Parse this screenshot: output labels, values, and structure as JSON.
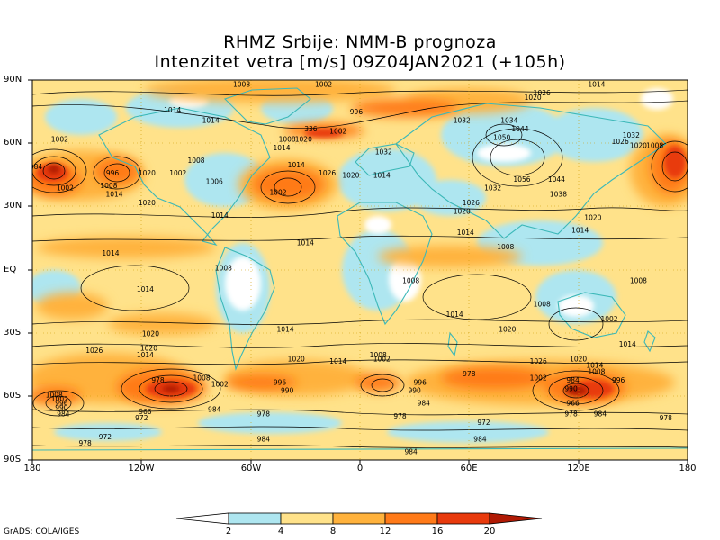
{
  "title_line1": "RHMZ Srbije: NMM-B prognoza",
  "title_line2": "Intenzitet vetra [m/s] 09Z04JAN2021 (+105h)",
  "credit": "GrADS: COLA/IGES",
  "lat_labels": [
    "90N",
    "60N",
    "30N",
    "EQ",
    "30S",
    "60S",
    "90S"
  ],
  "lon_labels": [
    "180",
    "120W",
    "60W",
    "0",
    "60E",
    "120E",
    "180"
  ],
  "colorbar": {
    "ticks": [
      "2",
      "4",
      "8",
      "12",
      "16",
      "20"
    ],
    "colors": [
      "#ffffff",
      "#aee6f0",
      "#ffe28a",
      "#ffb23c",
      "#ff7a18",
      "#e83a0c",
      "#b01a04"
    ]
  },
  "wind_colors": {
    "calm": "#ffffff",
    "light": "#aee6f0",
    "moderate": "#ffe28a",
    "fresh": "#ffb23c",
    "strong": "#ff7a18",
    "very_strong": "#e83a0c",
    "extreme": "#b01a04"
  },
  "coast_color": "#3cb8b8",
  "pressure_labels": [
    {
      "text": "1008",
      "lon": -65,
      "lat": 88
    },
    {
      "text": "1002",
      "lon": -20,
      "lat": 88
    },
    {
      "text": "1014",
      "lon": 130,
      "lat": 88
    },
    {
      "text": "1026",
      "lon": 100,
      "lat": 84
    },
    {
      "text": "1020",
      "lon": 95,
      "lat": 82
    },
    {
      "text": "996",
      "lon": -2,
      "lat": 75
    },
    {
      "text": "1014",
      "lon": -103,
      "lat": 76
    },
    {
      "text": "1014",
      "lon": -82,
      "lat": 71
    },
    {
      "text": "1032",
      "lon": 56,
      "lat": 71
    },
    {
      "text": "1034",
      "lon": 82,
      "lat": 71
    },
    {
      "text": "1044",
      "lon": 88,
      "lat": 67
    },
    {
      "text": "1002",
      "lon": -165,
      "lat": 62
    },
    {
      "text": "336",
      "lon": -27,
      "lat": 67
    },
    {
      "text": "1002",
      "lon": -12,
      "lat": 66
    },
    {
      "text": "1008",
      "lon": -40,
      "lat": 62
    },
    {
      "text": "1014",
      "lon": -43,
      "lat": 58
    },
    {
      "text": "1020",
      "lon": -31,
      "lat": 62
    },
    {
      "text": "1050",
      "lon": 78,
      "lat": 63
    },
    {
      "text": "1032",
      "lon": 149,
      "lat": 64
    },
    {
      "text": "1026",
      "lon": 143,
      "lat": 61
    },
    {
      "text": "1020",
      "lon": 153,
      "lat": 59
    },
    {
      "text": "1008",
      "lon": 162,
      "lat": 59
    },
    {
      "text": "1032",
      "lon": 13,
      "lat": 56
    },
    {
      "text": "984",
      "lon": -178,
      "lat": 49
    },
    {
      "text": "1002",
      "lon": -162,
      "lat": 39
    },
    {
      "text": "996",
      "lon": -136,
      "lat": 46
    },
    {
      "text": "1020",
      "lon": -117,
      "lat": 46
    },
    {
      "text": "1002",
      "lon": -100,
      "lat": 46
    },
    {
      "text": "1008",
      "lon": -90,
      "lat": 52
    },
    {
      "text": "1014",
      "lon": -35,
      "lat": 50
    },
    {
      "text": "1026",
      "lon": -18,
      "lat": 46
    },
    {
      "text": "1020",
      "lon": -5,
      "lat": 45
    },
    {
      "text": "1014",
      "lon": 12,
      "lat": 45
    },
    {
      "text": "1008",
      "lon": -138,
      "lat": 40
    },
    {
      "text": "1014",
      "lon": -135,
      "lat": 36
    },
    {
      "text": "1006",
      "lon": -80,
      "lat": 42
    },
    {
      "text": "1002",
      "lon": -45,
      "lat": 37
    },
    {
      "text": "1056",
      "lon": 89,
      "lat": 43
    },
    {
      "text": "1044",
      "lon": 108,
      "lat": 43
    },
    {
      "text": "1032",
      "lon": 73,
      "lat": 39
    },
    {
      "text": "1038",
      "lon": 109,
      "lat": 36
    },
    {
      "text": "1026",
      "lon": 61,
      "lat": 32
    },
    {
      "text": "1020",
      "lon": 56,
      "lat": 28
    },
    {
      "text": "1020",
      "lon": -117,
      "lat": 32
    },
    {
      "text": "1014",
      "lon": -77,
      "lat": 26
    },
    {
      "text": "1020",
      "lon": 128,
      "lat": 25
    },
    {
      "text": "1014",
      "lon": 58,
      "lat": 18
    },
    {
      "text": "1014",
      "lon": 121,
      "lat": 19
    },
    {
      "text": "1014",
      "lon": -30,
      "lat": 13
    },
    {
      "text": "1008",
      "lon": 80,
      "lat": 11
    },
    {
      "text": "1014",
      "lon": -137,
      "lat": 8
    },
    {
      "text": "1008",
      "lon": -75,
      "lat": 1
    },
    {
      "text": "1008",
      "lon": 28,
      "lat": -5
    },
    {
      "text": "1008",
      "lon": 153,
      "lat": -5
    },
    {
      "text": "1014",
      "lon": -118,
      "lat": -9
    },
    {
      "text": "1008",
      "lon": 100,
      "lat": -16
    },
    {
      "text": "1014",
      "lon": 52,
      "lat": -21
    },
    {
      "text": "1002",
      "lon": 137,
      "lat": -23
    },
    {
      "text": "1020",
      "lon": -115,
      "lat": -30
    },
    {
      "text": "1014",
      "lon": -41,
      "lat": -28
    },
    {
      "text": "1020",
      "lon": 81,
      "lat": -28
    },
    {
      "text": "1014",
      "lon": 147,
      "lat": -35
    },
    {
      "text": "1020",
      "lon": -116,
      "lat": -37
    },
    {
      "text": "1026",
      "lon": -146,
      "lat": -38
    },
    {
      "text": "1014",
      "lon": -118,
      "lat": -40
    },
    {
      "text": "1020",
      "lon": -35,
      "lat": -42
    },
    {
      "text": "1014",
      "lon": -12,
      "lat": -43
    },
    {
      "text": "1008",
      "lon": 10,
      "lat": -40
    },
    {
      "text": "1002",
      "lon": 12,
      "lat": -42
    },
    {
      "text": "1026",
      "lon": 98,
      "lat": -43
    },
    {
      "text": "1020",
      "lon": 120,
      "lat": -42
    },
    {
      "text": "1014",
      "lon": 129,
      "lat": -45
    },
    {
      "text": "1008",
      "lon": 130,
      "lat": -48
    },
    {
      "text": "978",
      "lon": -111,
      "lat": -52
    },
    {
      "text": "1008",
      "lon": -87,
      "lat": -51
    },
    {
      "text": "1002",
      "lon": -77,
      "lat": -54
    },
    {
      "text": "996",
      "lon": -44,
      "lat": -53
    },
    {
      "text": "990",
      "lon": -40,
      "lat": -57
    },
    {
      "text": "978",
      "lon": 60,
      "lat": -49
    },
    {
      "text": "996",
      "lon": 33,
      "lat": -53
    },
    {
      "text": "990",
      "lon": 30,
      "lat": -57
    },
    {
      "text": "1002",
      "lon": 98,
      "lat": -51
    },
    {
      "text": "984",
      "lon": 117,
      "lat": -52
    },
    {
      "text": "990",
      "lon": 116,
      "lat": -56
    },
    {
      "text": "996",
      "lon": 142,
      "lat": -52
    },
    {
      "text": "1008",
      "lon": -168,
      "lat": -59
    },
    {
      "text": "1002",
      "lon": -165,
      "lat": -61
    },
    {
      "text": "996",
      "lon": -164,
      "lat": -63
    },
    {
      "text": "990",
      "lon": -164,
      "lat": -65
    },
    {
      "text": "984",
      "lon": -163,
      "lat": -68
    },
    {
      "text": "966",
      "lon": -118,
      "lat": -67
    },
    {
      "text": "984",
      "lon": -80,
      "lat": -66
    },
    {
      "text": "984",
      "lon": 35,
      "lat": -63
    },
    {
      "text": "966",
      "lon": 117,
      "lat": -63
    },
    {
      "text": "978",
      "lon": 116,
      "lat": -68
    },
    {
      "text": "984",
      "lon": 132,
      "lat": -68
    },
    {
      "text": "972",
      "lon": -120,
      "lat": -70
    },
    {
      "text": "978",
      "lon": -53,
      "lat": -68
    },
    {
      "text": "978",
      "lon": 22,
      "lat": -69
    },
    {
      "text": "972",
      "lon": 68,
      "lat": -72
    },
    {
      "text": "978",
      "lon": 168,
      "lat": -70
    },
    {
      "text": "972",
      "lon": -140,
      "lat": -79
    },
    {
      "text": "978",
      "lon": -151,
      "lat": -82
    },
    {
      "text": "984",
      "lon": -53,
      "lat": -80
    },
    {
      "text": "984",
      "lon": 66,
      "lat": -80
    },
    {
      "text": "984",
      "lon": 28,
      "lat": -86
    }
  ]
}
